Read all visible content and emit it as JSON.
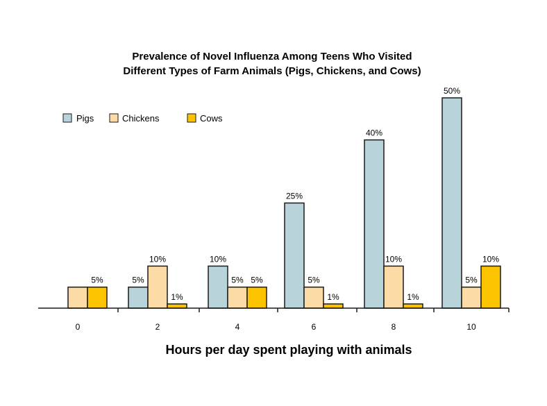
{
  "chart_data": {
    "type": "bar",
    "title_lines": [
      "Prevalence of Novel Influenza Among Teens Who Visited",
      "Different Types of Farm Animals (Pigs, Chickens, and Cows)"
    ],
    "xlabel": "Hours per day spent playing with animals",
    "ylabel": "",
    "ylim": [
      0,
      50
    ],
    "grid": false,
    "legend_placement": "top-left",
    "categories": [
      "0",
      "2",
      "4",
      "6",
      "8",
      "10"
    ],
    "series": [
      {
        "name": "Pigs",
        "color": "#b8d4da",
        "values": [
          null,
          5,
          10,
          25,
          40,
          50
        ],
        "labels": [
          "",
          "5%",
          "10%",
          "25%",
          "40%",
          "50%"
        ]
      },
      {
        "name": "Chickens",
        "color": "#fcdba6",
        "values": [
          5,
          10,
          5,
          5,
          10,
          5
        ],
        "labels": [
          "",
          "10%",
          "5%",
          "5%",
          "10%",
          "5%"
        ]
      },
      {
        "name": "Cows",
        "color": "#fcc300",
        "values": [
          5,
          1,
          5,
          1,
          1,
          10
        ],
        "labels": [
          "5%",
          "1%",
          "5%",
          "1%",
          "1%",
          "10%"
        ]
      }
    ]
  }
}
